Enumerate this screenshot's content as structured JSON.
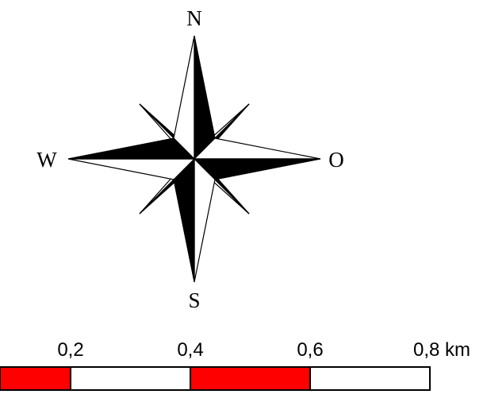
{
  "compass": {
    "north_label": "N",
    "south_label": "S",
    "west_label": "W",
    "east_label": "O",
    "fill_color": "#000000",
    "light_color": "#ffffff"
  },
  "scale_bar": {
    "unit": "km",
    "ticks": [
      {
        "value": 0.2,
        "label": "0,2"
      },
      {
        "value": 0.4,
        "label": "0,4"
      },
      {
        "value": 0.6,
        "label": "0,6"
      },
      {
        "value": 0.8,
        "label": "0,8 km"
      }
    ],
    "segments": [
      {
        "from": 0.0,
        "to": 0.2,
        "color": "#ff0000"
      },
      {
        "from": 0.2,
        "to": 0.4,
        "color": "#ffffff"
      },
      {
        "from": 0.4,
        "to": 0.6,
        "color": "#ff0000"
      },
      {
        "from": 0.6,
        "to": 0.8,
        "color": "#ffffff"
      }
    ]
  }
}
